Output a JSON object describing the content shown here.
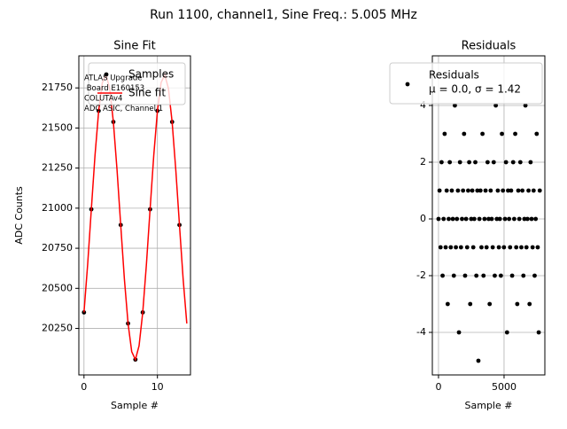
{
  "figure_title": "Run 1100, channel1, Sine Freq.: 5.005 MHz",
  "chart_data": [
    {
      "type": "sinefit",
      "title": "Sine Fit",
      "xlabel": "Sample #",
      "ylabel": "ADC Counts",
      "xlim": [
        -0.7,
        14.5
      ],
      "ylim": [
        19960,
        21950
      ],
      "xticks": [
        0,
        10
      ],
      "yticks": [
        20250,
        20500,
        20750,
        21000,
        21250,
        21500,
        21750
      ],
      "grid": true,
      "legend": "upper right",
      "annotation": [
        "ATLAS Upgrade",
        " Board E160153",
        "COLUTAv4",
        "ADC ASIC, Channel 1"
      ],
      "series": [
        {
          "name": "Samples",
          "kind": "scatter",
          "color": "#000000",
          "x": [
            0,
            1,
            2,
            3,
            4,
            5,
            6,
            7,
            8,
            9,
            10,
            11,
            12,
            13
          ],
          "values": [
            20350,
            20993,
            21607,
            21832,
            21538,
            20895,
            20281,
            20056,
            20350,
            20993,
            21607,
            21832,
            21538,
            20895
          ]
        },
        {
          "name": "Sine fit",
          "kind": "line",
          "color": "#ff0000",
          "x": [
            0,
            0.5,
            1,
            1.5,
            2,
            2.5,
            3,
            3.5,
            4,
            4.5,
            5,
            5.5,
            6,
            6.5,
            7,
            7.5,
            8,
            8.5,
            9,
            9.5,
            10,
            10.5,
            11,
            11.5,
            12,
            12.5,
            13,
            13.5,
            14
          ],
          "values": [
            20350,
            20649,
            20993,
            21329,
            21607,
            21783,
            21832,
            21746,
            21538,
            21239,
            20895,
            20559,
            20281,
            20105,
            20056,
            20142,
            20350,
            20649,
            20993,
            21329,
            21607,
            21783,
            21832,
            21746,
            21538,
            21239,
            20895,
            20559,
            20281
          ]
        }
      ]
    },
    {
      "type": "scatter",
      "title": "Residuals",
      "xlabel": "Sample #",
      "xlim": [
        -470,
        8110
      ],
      "ylim": [
        -5.5,
        5.75
      ],
      "xticks": [
        0,
        5000
      ],
      "yticks": [
        -4,
        -2,
        0,
        2,
        4
      ],
      "grid": true,
      "legend": "upper right",
      "series": [
        {
          "name": "Residuals",
          "legend_note": "μ = 0.0, σ = 1.42",
          "kind": "scatter",
          "color": "#000000",
          "x": [
            0,
            78,
            156,
            234,
            312,
            390,
            468,
            546,
            624,
            702,
            780,
            858,
            936,
            1014,
            1092,
            1170,
            1248,
            1326,
            1404,
            1482,
            1560,
            1638,
            1716,
            1794,
            1872,
            1950,
            2028,
            2106,
            2184,
            2262,
            2340,
            2418,
            2496,
            2574,
            2652,
            2730,
            2808,
            2886,
            2964,
            3042,
            3120,
            3198,
            3276,
            3354,
            3432,
            3510,
            3588,
            3666,
            3744,
            3822,
            3900,
            3978,
            4056,
            4134,
            4212,
            4290,
            4368,
            4446,
            4524,
            4602,
            4680,
            4758,
            4836,
            4914,
            4992,
            5070,
            5148,
            5226,
            5304,
            5382,
            5460,
            5538,
            5616,
            5694,
            5772,
            5850,
            5928,
            6006,
            6084,
            6162,
            6240,
            6318,
            6396,
            6474,
            6552,
            6630,
            6708,
            6786,
            6864,
            6942,
            7020,
            7098,
            7176,
            7254,
            7332,
            7410,
            7488,
            7566,
            7644,
            7722
          ],
          "values": [
            0,
            1,
            -1,
            2,
            -2,
            0,
            3,
            -1,
            1,
            -3,
            0,
            2,
            -1,
            1,
            0,
            -2,
            4,
            -1,
            0,
            1,
            -4,
            2,
            -1,
            0,
            1,
            3,
            -2,
            0,
            -1,
            1,
            2,
            -3,
            0,
            1,
            -1,
            0,
            2,
            -2,
            1,
            -5,
            0,
            1,
            -1,
            3,
            -2,
            0,
            1,
            -1,
            2,
            0,
            -3,
            1,
            0,
            -1,
            2,
            -2,
            4,
            0,
            1,
            -1,
            0,
            -2,
            3,
            1,
            -1,
            0,
            2,
            -4,
            1,
            0,
            -1,
            1,
            -2,
            2,
            0,
            3,
            -1,
            -3,
            1,
            0,
            2,
            -1,
            1,
            -2,
            0,
            4,
            -1,
            0,
            1,
            -3,
            2,
            0,
            -1,
            1,
            -2,
            0,
            3,
            -1,
            -4,
            1
          ]
        }
      ]
    }
  ]
}
